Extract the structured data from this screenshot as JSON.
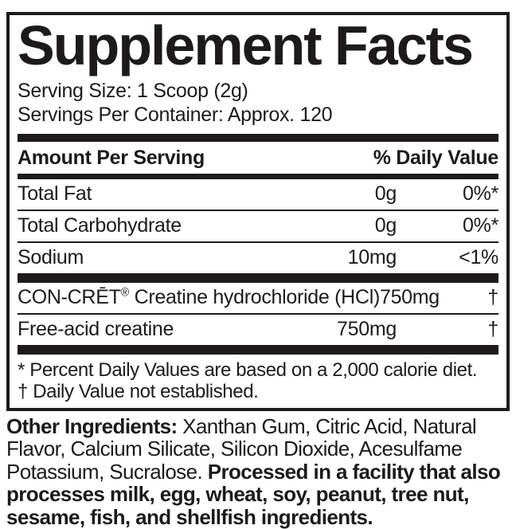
{
  "label": {
    "title": "Supplement Facts",
    "serving_size": "Serving Size: 1 Scoop (2g)",
    "servings_per_container": "Servings Per Container: Approx. 120",
    "header": {
      "amount": "Amount Per Serving",
      "daily_value": "% Daily Value"
    },
    "rows": [
      {
        "name": "Total Fat",
        "amount": "0g",
        "dv": "0%*"
      },
      {
        "name": "Total Carbohydrate",
        "amount": "0g",
        "dv": "0%*"
      },
      {
        "name": "Sodium",
        "amount": "10mg",
        "dv": "<1%"
      },
      {
        "name": "CON-CRĒT® Creatine hydrochloride (HCl)",
        "amount": "750mg",
        "dv": "†"
      },
      {
        "name": "Free-acid creatine",
        "amount": "750mg",
        "dv": "†"
      }
    ],
    "footnotes": [
      "* Percent Daily Values are based on a 2,000 calorie diet.",
      "† Daily Value not established."
    ],
    "other_ingredients": {
      "label": "Other Ingredients:",
      "list": " Xanthan Gum, Citric Acid, Natural Flavor, Calcium Silicate, Silicon Dioxide, Acesulfame Potassium, Sucralose. ",
      "allergen": "Processed in a facility that also processes milk, egg, wheat, soy, peanut, tree nut, sesame, fish, and shellfish ingredients."
    },
    "colors": {
      "ink": "#1d1a1b",
      "background": "#ffffff"
    }
  }
}
